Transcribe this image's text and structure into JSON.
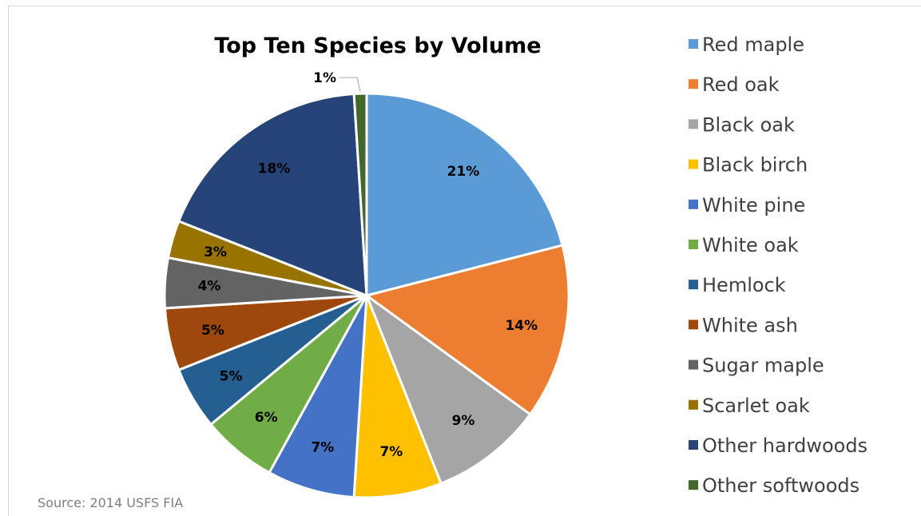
{
  "chart_data": {
    "type": "pie",
    "title": "Top Ten Species by Volume",
    "categories": [
      "Red maple",
      "Red oak",
      "Black oak",
      "Black birch",
      "White pine",
      "White oak",
      "Hemlock",
      "White ash",
      "Sugar maple",
      "Scarlet oak",
      "Other hardwoods",
      "Other softwoods"
    ],
    "values": [
      21,
      14,
      9,
      7,
      7,
      6,
      5,
      5,
      4,
      3,
      18,
      1
    ],
    "labels": [
      "21%",
      "14%",
      "9%",
      "7%",
      "7%",
      "6%",
      "5%",
      "5%",
      "4%",
      "3%",
      "18%",
      "1%"
    ],
    "colors": [
      "#5b9bd5",
      "#ed7d31",
      "#a5a5a5",
      "#ffc000",
      "#4472c4",
      "#70ad47",
      "#255e91",
      "#9e480e",
      "#636363",
      "#997300",
      "#264478",
      "#43682b"
    ],
    "legend_position": "right",
    "start_angle_deg": 0,
    "direction": "clockwise"
  },
  "source": "Source: 2014 USFS FIA"
}
